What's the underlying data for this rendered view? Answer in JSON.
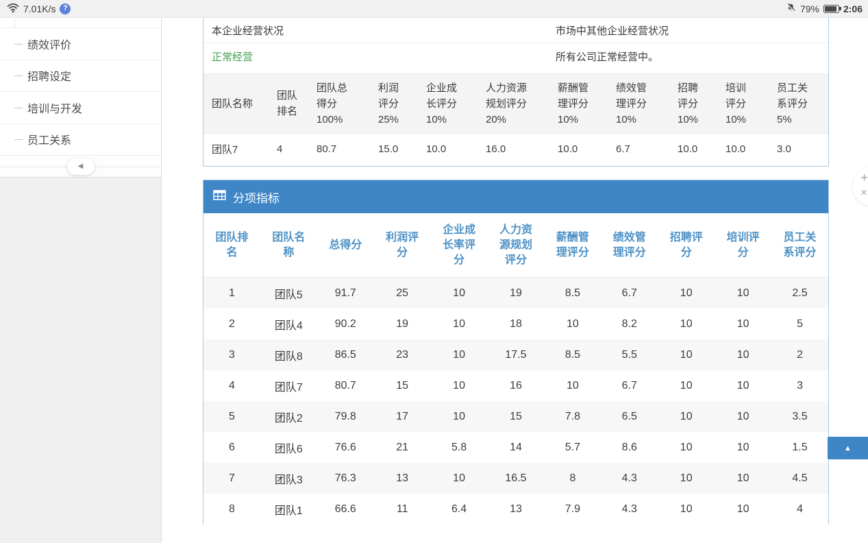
{
  "status_bar": {
    "network_speed": "7.01K/s",
    "help_glyph": "?",
    "battery_percent": "79%",
    "time": "2:06"
  },
  "sidebar": {
    "items": [
      {
        "id": "performance-evaluation",
        "label": "绩效评价"
      },
      {
        "id": "recruitment-settings",
        "label": "招聘设定"
      },
      {
        "id": "training-development",
        "label": "培训与开发"
      },
      {
        "id": "employee-relations",
        "label": "员工关系"
      }
    ],
    "collapse_glyph": "◀"
  },
  "overview": {
    "left_title": "本企业经营状况",
    "right_title": "市场中其他企业经营状况",
    "left_value": "正常经营",
    "right_value": "所有公司正常经营中。"
  },
  "summary_panel": {
    "score_table": {
      "columns": [
        [
          "团队名称"
        ],
        [
          "团队",
          "排名"
        ],
        [
          "团队总",
          "得分",
          "100%"
        ],
        [
          "利润",
          "评分",
          "25%"
        ],
        [
          "企业成",
          "长评分",
          "10%"
        ],
        [
          "人力资源",
          "规划评分",
          "20%"
        ],
        [
          "薪酬管",
          "理评分",
          "10%"
        ],
        [
          "绩效管",
          "理评分",
          "10%"
        ],
        [
          "招聘",
          "评分",
          "10%"
        ],
        [
          "培训",
          "评分",
          "10%"
        ],
        [
          "员工关",
          "系评分",
          "5%"
        ]
      ],
      "rows": [
        [
          "团队7",
          "4",
          "80.7",
          "15.0",
          "10.0",
          "16.0",
          "10.0",
          "6.7",
          "10.0",
          "10.0",
          "3.0"
        ]
      ]
    }
  },
  "detail_panel": {
    "title": "分项指标",
    "table": {
      "columns": [
        [
          "团队排",
          "名"
        ],
        [
          "团队名",
          "称"
        ],
        [
          "总得分"
        ],
        [
          "利润评",
          "分"
        ],
        [
          "企业成",
          "长率评",
          "分"
        ],
        [
          "人力资",
          "源规划",
          "评分"
        ],
        [
          "薪酬管",
          "理评分"
        ],
        [
          "绩效管",
          "理评分"
        ],
        [
          "招聘评",
          "分"
        ],
        [
          "培训评",
          "分"
        ],
        [
          "员工关",
          "系评分"
        ]
      ],
      "rows": [
        [
          "1",
          "团队5",
          "91.7",
          "25",
          "10",
          "19",
          "8.5",
          "6.7",
          "10",
          "10",
          "2.5"
        ],
        [
          "2",
          "团队4",
          "90.2",
          "19",
          "10",
          "18",
          "10",
          "8.2",
          "10",
          "10",
          "5"
        ],
        [
          "3",
          "团队8",
          "86.5",
          "23",
          "10",
          "17.5",
          "8.5",
          "5.5",
          "10",
          "10",
          "2"
        ],
        [
          "4",
          "团队7",
          "80.7",
          "15",
          "10",
          "16",
          "10",
          "6.7",
          "10",
          "10",
          "3"
        ],
        [
          "5",
          "团队2",
          "79.8",
          "17",
          "10",
          "15",
          "7.8",
          "6.5",
          "10",
          "10",
          "3.5"
        ],
        [
          "6",
          "团队6",
          "76.6",
          "21",
          "5.8",
          "14",
          "5.7",
          "8.6",
          "10",
          "10",
          "1.5"
        ],
        [
          "7",
          "团队3",
          "76.3",
          "13",
          "10",
          "16.5",
          "8",
          "4.3",
          "10",
          "10",
          "4.5"
        ],
        [
          "8",
          "团队1",
          "66.6",
          "11",
          "6.4",
          "13",
          "7.9",
          "4.3",
          "10",
          "10",
          "4"
        ]
      ]
    }
  },
  "floating_widget": {
    "plus_glyph": "+",
    "close_glyph": "×"
  },
  "back_to_top_glyph": "▲",
  "colors": {
    "accent_blue": "#3e86c6",
    "table_header_blue": "#4e92c6",
    "status_green": "#3fa24d",
    "panel_border": "#abc9e0"
  }
}
